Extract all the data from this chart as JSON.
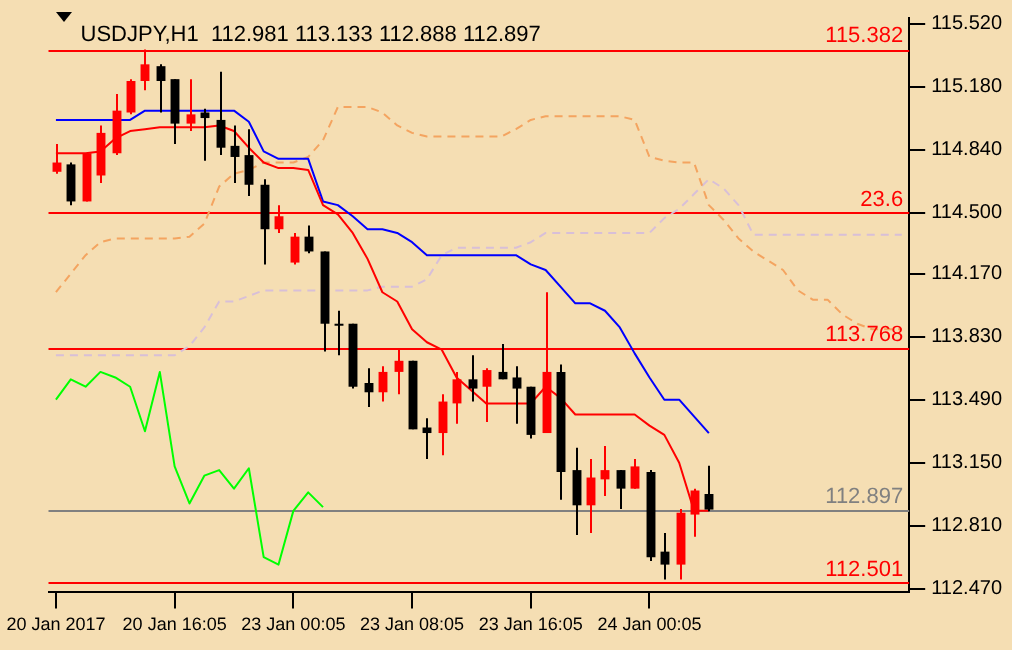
{
  "chart_data": {
    "type": "candlestick",
    "title": "USDJPY,H1  112.981 113.133 112.888 112.897",
    "categories": [
      "20 Jan 2017",
      null,
      null,
      null,
      null,
      null,
      null,
      null,
      "20 Jan 16:05",
      null,
      null,
      null,
      null,
      null,
      null,
      null,
      "23 Jan 00:05",
      null,
      null,
      null,
      null,
      null,
      null,
      null,
      "23 Jan 08:05",
      null,
      null,
      null,
      null,
      null,
      null,
      null,
      "23 Jan 16:05",
      null,
      null,
      null,
      null,
      null,
      null,
      null,
      "24 Jan 00:05",
      null,
      null,
      null,
      null,
      null,
      null,
      null,
      null,
      null,
      null,
      null,
      null,
      null,
      null,
      null,
      null,
      null
    ],
    "ohlc": [
      [
        114.72,
        114.87,
        114.71,
        114.77
      ],
      [
        114.76,
        114.77,
        114.54,
        114.56
      ],
      [
        114.56,
        114.82,
        114.56,
        114.82
      ],
      [
        114.7,
        114.97,
        114.66,
        114.93
      ],
      [
        114.82,
        115.14,
        114.81,
        115.05
      ],
      [
        115.04,
        115.22,
        115.03,
        115.21
      ],
      [
        115.21,
        115.38,
        115.16,
        115.3
      ],
      [
        115.29,
        115.3,
        115.04,
        115.21
      ],
      [
        115.22,
        115.22,
        114.87,
        114.98
      ],
      [
        114.98,
        115.22,
        114.94,
        115.03
      ],
      [
        115.04,
        115.06,
        114.78,
        115.01
      ],
      [
        115.0,
        115.26,
        114.81,
        114.85
      ],
      [
        114.86,
        114.97,
        114.66,
        114.8
      ],
      [
        114.81,
        114.95,
        114.59,
        114.65
      ],
      [
        114.65,
        114.68,
        114.22,
        114.41
      ],
      [
        114.41,
        114.54,
        114.39,
        114.48
      ],
      [
        114.23,
        114.39,
        114.22,
        114.37
      ],
      [
        114.37,
        114.43,
        114.28,
        114.29
      ],
      [
        114.29,
        114.29,
        113.75,
        113.9
      ],
      [
        113.9,
        113.97,
        113.73,
        113.89
      ],
      [
        113.9,
        113.9,
        113.55,
        113.56
      ],
      [
        113.58,
        113.66,
        113.45,
        113.53
      ],
      [
        113.53,
        113.67,
        113.48,
        113.64
      ],
      [
        113.64,
        113.76,
        113.52,
        113.7
      ],
      [
        113.7,
        113.7,
        113.33,
        113.33
      ],
      [
        113.34,
        113.39,
        113.17,
        113.31
      ],
      [
        113.31,
        113.52,
        113.19,
        113.48
      ],
      [
        113.47,
        113.64,
        113.36,
        113.6
      ],
      [
        113.6,
        113.73,
        113.48,
        113.55
      ],
      [
        113.56,
        113.66,
        113.37,
        113.65
      ],
      [
        113.64,
        113.79,
        113.6,
        113.6
      ],
      [
        113.61,
        113.67,
        113.36,
        113.55
      ],
      [
        113.56,
        113.56,
        113.28,
        113.3
      ],
      [
        113.31,
        114.07,
        113.31,
        113.64
      ],
      [
        113.64,
        113.68,
        112.95,
        113.1
      ],
      [
        113.11,
        113.23,
        112.76,
        112.92
      ],
      [
        112.92,
        113.17,
        112.77,
        113.07
      ],
      [
        113.06,
        113.24,
        112.97,
        113.11
      ],
      [
        113.11,
        113.11,
        112.9,
        113.01
      ],
      [
        113.01,
        113.17,
        113.01,
        113.13
      ],
      [
        113.1,
        113.11,
        112.62,
        112.64
      ],
      [
        112.67,
        112.77,
        112.52,
        112.6
      ],
      [
        112.6,
        112.9,
        112.52,
        112.88
      ],
      [
        112.87,
        113.01,
        112.75,
        113.0
      ],
      [
        112.981,
        113.133,
        112.888,
        112.897
      ],
      null,
      null,
      null,
      null,
      null,
      null,
      null,
      null,
      null,
      null,
      null,
      null,
      null
    ],
    "colors": [
      "#ff0000",
      "#000000",
      "#ff0000",
      "#ff0000",
      "#ff0000",
      "#ff0000",
      "#ff0000",
      "#000000",
      "#000000",
      "#ff0000",
      "#000000",
      "#000000",
      "#000000",
      "#000000",
      "#000000",
      "#ff0000",
      "#ff0000",
      "#000000",
      "#000000",
      "#000000",
      "#000000",
      "#000000",
      "#ff0000",
      "#ff0000",
      "#000000",
      "#000000",
      "#ff0000",
      "#ff0000",
      "#000000",
      "#ff0000",
      "#000000",
      "#000000",
      "#000000",
      "#ff0000",
      "#000000",
      "#000000",
      "#ff0000",
      "#ff0000",
      "#000000",
      "#ff0000",
      "#000000",
      "#000000",
      "#ff0000",
      "#ff0000",
      "#000000",
      null,
      null,
      null,
      null,
      null,
      null,
      null,
      null,
      null,
      null,
      null,
      null,
      null
    ],
    "series": [
      {
        "type": "line",
        "color": "#ff0000",
        "values": [
          114.82,
          114.82,
          114.82,
          114.83,
          114.9,
          114.94,
          114.95,
          114.96,
          114.96,
          114.96,
          114.96,
          114.97,
          114.94,
          114.85,
          114.77,
          114.74,
          114.74,
          114.73,
          114.54,
          114.49,
          114.39,
          114.25,
          114.07,
          114.02,
          113.87,
          113.8,
          113.76,
          113.61,
          113.54,
          113.47,
          113.47,
          113.47,
          113.47,
          113.56,
          113.5,
          113.41,
          113.41,
          113.41,
          113.41,
          113.41,
          113.35,
          113.3,
          113.15,
          112.89,
          112.89,
          null,
          null,
          null,
          null,
          null,
          null,
          null,
          null,
          null,
          null,
          null,
          null,
          null
        ]
      },
      {
        "type": "line",
        "color": "#0000ff",
        "values": [
          115.0,
          115.0,
          115.0,
          115.0,
          115.0,
          115.0,
          115.05,
          115.05,
          115.05,
          115.05,
          115.05,
          115.05,
          115.05,
          114.99,
          114.83,
          114.79,
          114.79,
          114.79,
          114.56,
          114.54,
          114.48,
          114.41,
          114.41,
          114.39,
          114.34,
          114.27,
          114.27,
          114.27,
          114.27,
          114.27,
          114.27,
          114.27,
          114.22,
          114.19,
          114.1,
          114.01,
          114.01,
          113.97,
          113.88,
          113.74,
          113.61,
          113.49,
          113.49,
          113.4,
          113.31,
          null,
          null,
          null,
          null,
          null,
          null,
          null,
          null,
          null,
          null,
          null,
          null,
          null
        ]
      },
      {
        "type": "line",
        "color": "#f4a460",
        "line_style": "dashed",
        "values": [
          114.07,
          114.17,
          114.27,
          114.34,
          114.36,
          114.36,
          114.36,
          114.36,
          114.36,
          114.37,
          114.44,
          114.64,
          114.71,
          114.73,
          114.77,
          114.77,
          114.77,
          114.8,
          114.89,
          115.07,
          115.07,
          115.07,
          115.04,
          114.97,
          114.93,
          114.91,
          114.91,
          114.91,
          114.91,
          114.91,
          114.91,
          114.95,
          115.0,
          115.02,
          115.02,
          115.02,
          115.02,
          115.02,
          115.02,
          115.0,
          114.8,
          114.78,
          114.77,
          114.77,
          114.54,
          114.46,
          114.36,
          114.29,
          114.24,
          114.19,
          114.08,
          114.03,
          114.03,
          113.95,
          113.9,
          113.87,
          113.87,
          113.87
        ]
      },
      {
        "type": "line",
        "color": "#d8bfd8",
        "line_style": "dashed",
        "values": [
          113.73,
          113.73,
          113.73,
          113.73,
          113.73,
          113.73,
          113.73,
          113.73,
          113.73,
          113.78,
          113.88,
          114.02,
          114.02,
          114.05,
          114.08,
          114.08,
          114.08,
          114.08,
          114.08,
          114.08,
          114.08,
          114.08,
          114.1,
          114.1,
          114.1,
          114.14,
          114.27,
          114.31,
          114.31,
          114.31,
          114.31,
          114.31,
          114.34,
          114.39,
          114.39,
          114.39,
          114.39,
          114.39,
          114.39,
          114.39,
          114.39,
          114.47,
          114.52,
          114.6,
          114.68,
          114.63,
          114.54,
          114.38,
          114.38,
          114.38,
          114.38,
          114.38,
          114.38,
          114.38,
          114.38,
          114.38,
          114.38,
          114.38
        ]
      },
      {
        "type": "line",
        "color": "#00ff00",
        "values": [
          113.49,
          113.6,
          113.56,
          113.64,
          113.61,
          113.56,
          113.32,
          113.64,
          113.13,
          112.93,
          113.08,
          113.11,
          113.01,
          113.12,
          112.64,
          112.6,
          112.89,
          112.99,
          112.91,
          null,
          null,
          null,
          null,
          null,
          null,
          null,
          null,
          null,
          null,
          null,
          null,
          null,
          null,
          null,
          null,
          null,
          null,
          null,
          null,
          null,
          null,
          null,
          null,
          null,
          null,
          null,
          null,
          null,
          null,
          null,
          null,
          null,
          null,
          null,
          null,
          null,
          null,
          null
        ]
      }
    ],
    "ylim": [
      112.45,
      115.55
    ],
    "yticks": [
      {
        "value": 115.52,
        "label": "115.520"
      },
      {
        "value": 115.18,
        "label": "115.180"
      },
      {
        "value": 114.84,
        "label": "114.840"
      },
      {
        "value": 114.5,
        "label": "114.500"
      },
      {
        "value": 114.17,
        "label": "114.170"
      },
      {
        "value": 113.83,
        "label": "113.830"
      },
      {
        "value": 113.49,
        "label": "113.490"
      },
      {
        "value": 113.15,
        "label": "113.150"
      },
      {
        "value": 112.81,
        "label": "112.810"
      },
      {
        "value": 112.47,
        "label": "112.470"
      }
    ],
    "ref_lines": [
      {
        "axis": "y",
        "value": 115.382,
        "label": "115.382",
        "color": "#ff0000"
      },
      {
        "axis": "y",
        "value": 114.5,
        "color": "#ff0000"
      },
      {
        "axis": "y",
        "value": 113.768,
        "label": "113.768",
        "color": "#ff0000"
      },
      {
        "axis": "y",
        "value": 112.897,
        "label": "112.897",
        "color": "#808080"
      },
      {
        "axis": "y",
        "value": 112.501,
        "label": "112.501",
        "color": "#ff0000"
      }
    ],
    "annotations": [
      {
        "text": "23.6",
        "y": 114.5
      }
    ],
    "grid": false,
    "legend": false,
    "marker": "none"
  }
}
